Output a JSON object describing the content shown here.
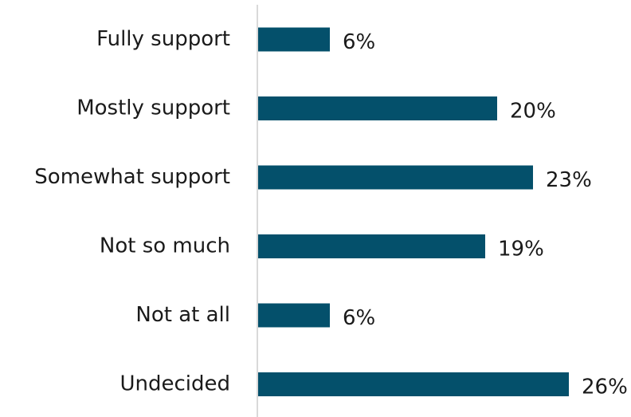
{
  "chart_data": {
    "type": "bar",
    "orientation": "horizontal",
    "categories": [
      "Fully support",
      "Mostly support",
      "Somewhat support",
      "Not so much",
      "Not at all",
      "Undecided"
    ],
    "values": [
      6,
      20,
      23,
      19,
      6,
      26
    ],
    "value_labels": [
      "6%",
      "20%",
      "23%",
      "19%",
      "6%",
      "26%"
    ],
    "unit": "%",
    "xlim": [
      0,
      26
    ],
    "grid": false,
    "legend": "none",
    "bar_color": "#04506b",
    "axis_color": "#d9d9d9"
  }
}
